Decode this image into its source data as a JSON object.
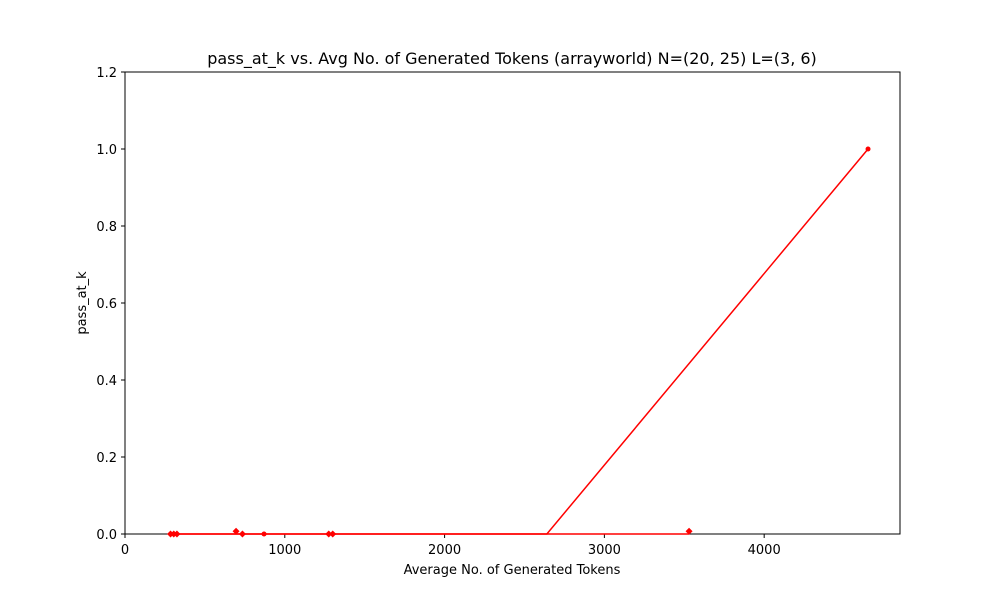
{
  "chart_data": {
    "type": "line",
    "title": "pass_at_k vs. Avg No. of Generated Tokens (arrayworld) N=(20, 25) L=(3, 6)",
    "xlabel": "Average No. of Generated Tokens",
    "ylabel": "pass_at_k",
    "xlim": [
      0,
      4850
    ],
    "ylim": [
      0,
      1.2
    ],
    "xticks": [
      0,
      1000,
      2000,
      3000,
      4000
    ],
    "yticks": [
      0.0,
      0.2,
      0.4,
      0.6,
      0.8,
      1.0,
      1.2
    ],
    "grid": false,
    "line_color": "#ff0000",
    "series": [
      {
        "x": [
          280,
          300,
          320,
          700,
          730,
          870,
          1280,
          1300,
          2640,
          4650
        ],
        "y": [
          0,
          0,
          0,
          0,
          0,
          0,
          0,
          0,
          0,
          1.0
        ]
      }
    ],
    "flat_segment": {
      "x": [
        280,
        3530
      ],
      "y": [
        0,
        0
      ]
    },
    "markers": [
      {
        "x": 285,
        "y": 0.0,
        "shape": "diamond"
      },
      {
        "x": 305,
        "y": 0.0,
        "shape": "diamond"
      },
      {
        "x": 325,
        "y": 0.0,
        "shape": "diamond"
      },
      {
        "x": 695,
        "y": 0.007,
        "shape": "diamond"
      },
      {
        "x": 735,
        "y": 0.0,
        "shape": "diamond"
      },
      {
        "x": 870,
        "y": 0.0,
        "shape": "dot"
      },
      {
        "x": 1275,
        "y": 0.0,
        "shape": "diamond"
      },
      {
        "x": 1300,
        "y": 0.0,
        "shape": "diamond"
      },
      {
        "x": 3530,
        "y": 0.007,
        "shape": "diamond"
      },
      {
        "x": 4650,
        "y": 1.0,
        "shape": "dot"
      }
    ]
  }
}
